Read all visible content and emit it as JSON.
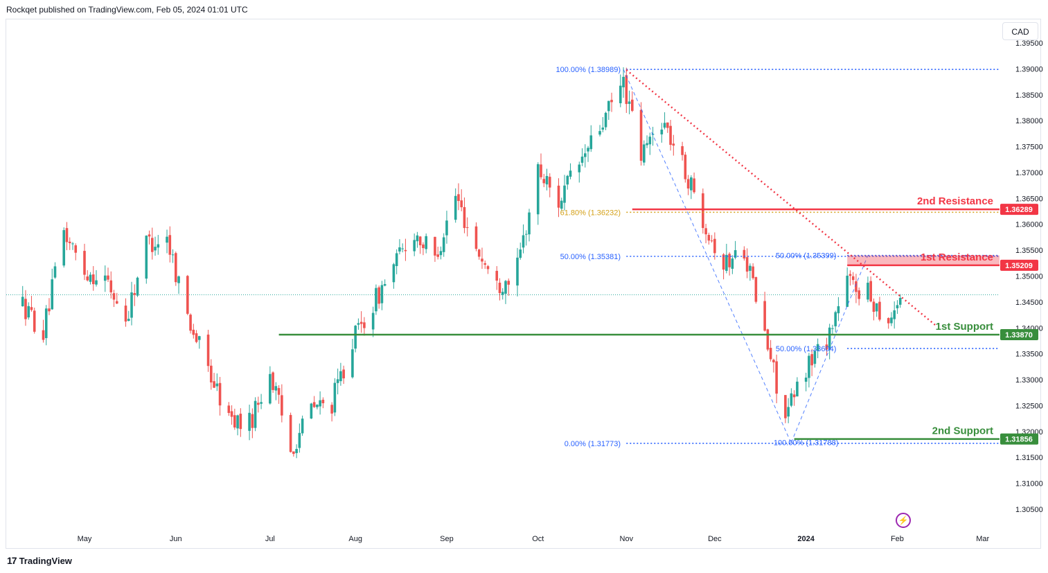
{
  "header": {
    "published_by": "Rockqet published on TradingView.com, Feb 05, 2024 01:01 UTC"
  },
  "toolbar": {
    "currency": "CAD"
  },
  "brand": {
    "name": "TradingView",
    "logo": "17"
  },
  "icons": {
    "alert": "lightning-icon"
  },
  "colors": {
    "up": "#26a69a",
    "down": "#ef5350",
    "resistance": "#f23645",
    "support": "#388e3c",
    "fib": "#2962ff",
    "fib_gold": "#d4a017",
    "trend": "#f23645"
  },
  "chart_data": {
    "type": "candlestick",
    "symbol_currency": "CAD",
    "y_axis": {
      "ylim": [
        1.3005,
        1.3965
      ],
      "ticks": [
        "1.39500",
        "1.39000",
        "1.38500",
        "1.38000",
        "1.37500",
        "1.37000",
        "1.36500",
        "1.36000",
        "1.35500",
        "1.35000",
        "1.34500",
        "1.34000",
        "1.33500",
        "1.33000",
        "1.32500",
        "1.32000",
        "1.31500",
        "1.31000",
        "1.30500"
      ]
    },
    "x_axis": {
      "ticks": [
        {
          "label": "May",
          "date": "2023-05-01"
        },
        {
          "label": "Jun",
          "date": "2023-06-01"
        },
        {
          "label": "Jul",
          "date": "2023-07-03"
        },
        {
          "label": "Aug",
          "date": "2023-08-01"
        },
        {
          "label": "Sep",
          "date": "2023-09-01"
        },
        {
          "label": "Oct",
          "date": "2023-10-02"
        },
        {
          "label": "Nov",
          "date": "2023-11-01"
        },
        {
          "label": "Dec",
          "date": "2023-12-01"
        },
        {
          "label": "2024",
          "date": "2024-01-01"
        },
        {
          "label": "Feb",
          "date": "2024-02-01"
        },
        {
          "label": "Mar",
          "date": "2024-03-01"
        }
      ]
    },
    "price_marker": 1.3464,
    "levels": [
      {
        "name": "2nd Resistance",
        "price": 1.36289,
        "label": "1.36289",
        "kind": "resistance",
        "from": "2023-11-03"
      },
      {
        "name": "1st Resistance",
        "price": 1.35209,
        "label": "1.35209",
        "kind": "resistance",
        "from": "2024-01-15",
        "zone_top": 1.354
      },
      {
        "name": "1st Support",
        "price": 1.3387,
        "label": "1.33870",
        "kind": "support",
        "from": "2023-07-06"
      },
      {
        "name": "2nd Support",
        "price": 1.31856,
        "label": "1.31856",
        "kind": "support",
        "from": "2023-12-28"
      }
    ],
    "fib_labels": [
      {
        "text": "100.00% (1.38989)",
        "price": 1.38989,
        "date": "2023-10-31",
        "color": "blue"
      },
      {
        "text": "61.80% (1.36232)",
        "price": 1.36232,
        "date": "2023-10-31",
        "color": "gold"
      },
      {
        "text": "50.00% (1.35381)",
        "price": 1.35381,
        "date": "2023-10-31",
        "color": "blue"
      },
      {
        "text": "0.00% (1.31773)",
        "price": 1.31773,
        "date": "2023-10-31",
        "color": "blue"
      },
      {
        "text": "50.00% (1.35399)",
        "price": 1.35399,
        "date": "2024-01-15",
        "color": "blue"
      },
      {
        "text": "50.00% (1.33604)",
        "price": 1.33604,
        "date": "2024-01-15",
        "color": "blue"
      },
      {
        "text": "100.00% (1.31788)",
        "price": 1.31788,
        "date": "2024-01-15",
        "color": "blue"
      }
    ],
    "path_points": [
      [
        "2023-04-10",
        1.3445
      ],
      [
        "2023-04-17",
        1.339
      ],
      [
        "2023-04-24",
        1.3585
      ],
      [
        "2023-05-01",
        1.351
      ],
      [
        "2023-05-08",
        1.3495
      ],
      [
        "2023-05-15",
        1.3415
      ],
      [
        "2023-05-22",
        1.3565
      ],
      [
        "2023-05-29",
        1.3575
      ],
      [
        "2023-06-05",
        1.3425
      ],
      [
        "2023-06-12",
        1.332
      ],
      [
        "2023-06-19",
        1.3225
      ],
      [
        "2023-06-26",
        1.3215
      ],
      [
        "2023-07-03",
        1.3315
      ],
      [
        "2023-07-10",
        1.3165
      ],
      [
        "2023-07-17",
        1.3245
      ],
      [
        "2023-07-24",
        1.3255
      ],
      [
        "2023-07-31",
        1.3375
      ],
      [
        "2023-08-07",
        1.3445
      ],
      [
        "2023-08-14",
        1.352
      ],
      [
        "2023-08-21",
        1.3585
      ],
      [
        "2023-08-28",
        1.3535
      ],
      [
        "2023-09-04",
        1.3655
      ],
      [
        "2023-09-11",
        1.3555
      ],
      [
        "2023-09-18",
        1.348
      ],
      [
        "2023-09-25",
        1.3515
      ],
      [
        "2023-10-02",
        1.3705
      ],
      [
        "2023-10-09",
        1.3645
      ],
      [
        "2023-10-16",
        1.3715
      ],
      [
        "2023-10-23",
        1.3785
      ],
      [
        "2023-10-31",
        1.3875
      ],
      [
        "2023-11-06",
        1.373
      ],
      [
        "2023-11-13",
        1.3805
      ],
      [
        "2023-11-20",
        1.3715
      ],
      [
        "2023-11-27",
        1.3615
      ],
      [
        "2023-12-04",
        1.352
      ],
      [
        "2023-12-11",
        1.3555
      ],
      [
        "2023-12-18",
        1.3385
      ],
      [
        "2023-12-25",
        1.3225
      ],
      [
        "2024-01-01",
        1.3325
      ],
      [
        "2024-01-08",
        1.338
      ],
      [
        "2024-01-15",
        1.349
      ],
      [
        "2024-01-22",
        1.3465
      ],
      [
        "2024-01-29",
        1.3415
      ],
      [
        "2024-02-02",
        1.3462
      ]
    ],
    "trend_line": {
      "from": [
        "2023-11-01",
        1.3898
      ],
      "to": [
        "2024-02-14",
        1.3405
      ]
    }
  }
}
